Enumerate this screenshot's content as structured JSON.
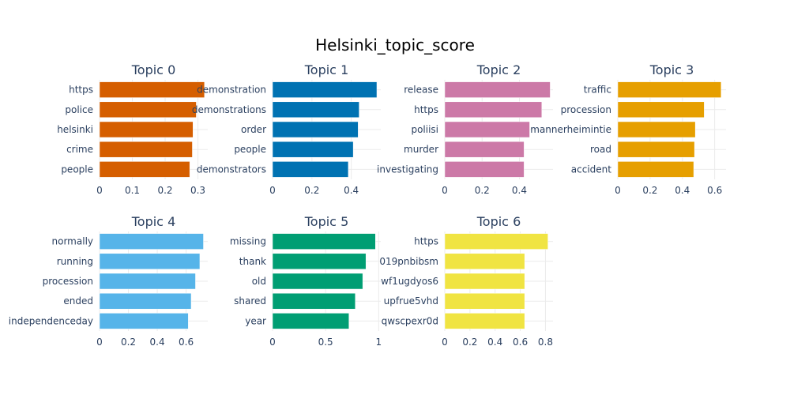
{
  "chart_data": {
    "type": "bar",
    "orientation": "horizontal",
    "title": "Helsinki_topic_score",
    "grid": true,
    "subplots": [
      {
        "title": "Topic 0",
        "color": "#D55E00",
        "categories": [
          "https",
          "police",
          "helsinki",
          "crime",
          "people"
        ],
        "values": [
          0.32,
          0.295,
          0.285,
          0.283,
          0.275
        ],
        "xlim": [
          0,
          0.33
        ],
        "xticks": [
          "0",
          "0.1",
          "0.2",
          "0.3"
        ],
        "xtick_values": [
          0,
          0.1,
          0.2,
          0.3
        ]
      },
      {
        "title": "Topic 1",
        "color": "#0072B2",
        "categories": [
          "demonstration",
          "demonstrations",
          "order",
          "people",
          "demonstrators"
        ],
        "values": [
          0.53,
          0.44,
          0.435,
          0.41,
          0.385
        ],
        "xlim": [
          0,
          0.55
        ],
        "xticks": [
          "0",
          "0.2",
          "0.4"
        ],
        "xtick_values": [
          0,
          0.2,
          0.4
        ]
      },
      {
        "title": "Topic 2",
        "color": "#CC79A7",
        "categories": [
          "release",
          "https",
          "poliisi",
          "murder",
          "investigating"
        ],
        "values": [
          0.565,
          0.52,
          0.455,
          0.425,
          0.425
        ],
        "xlim": [
          0,
          0.58
        ],
        "xticks": [
          "0",
          "0.2",
          "0.4"
        ],
        "xtick_values": [
          0,
          0.2,
          0.4
        ]
      },
      {
        "title": "Topic 3",
        "color": "#E69F00",
        "categories": [
          "traffic",
          "procession",
          "mannerheimintie",
          "road",
          "accident"
        ],
        "values": [
          0.64,
          0.535,
          0.48,
          0.475,
          0.47
        ],
        "xlim": [
          0,
          0.67
        ],
        "xticks": [
          "0",
          "0.2",
          "0.4",
          "0.6"
        ],
        "xtick_values": [
          0,
          0.2,
          0.4,
          0.6
        ]
      },
      {
        "title": "Topic 4",
        "color": "#56B4E9",
        "categories": [
          "normally",
          "running",
          "procession",
          "ended",
          "independenceday"
        ],
        "values": [
          0.72,
          0.695,
          0.665,
          0.635,
          0.615
        ],
        "xlim": [
          0,
          0.75
        ],
        "xticks": [
          "0",
          "0.2",
          "0.4",
          "0.6"
        ],
        "xtick_values": [
          0,
          0.2,
          0.4,
          0.6
        ]
      },
      {
        "title": "Topic 5",
        "color": "#009E73",
        "categories": [
          "missing",
          "thank",
          "old",
          "shared",
          "year"
        ],
        "values": [
          0.97,
          0.88,
          0.85,
          0.78,
          0.72
        ],
        "xlim": [
          0,
          1.02
        ],
        "xticks": [
          "0",
          "0.5",
          "1"
        ],
        "xtick_values": [
          0,
          0.5,
          1
        ]
      },
      {
        "title": "Topic 6",
        "color": "#F0E442",
        "categories": [
          "https",
          "019pnbibsm",
          "wf1ugdyos6",
          "upfrue5vhd",
          "qwscpexr0d"
        ],
        "values": [
          0.82,
          0.635,
          0.635,
          0.635,
          0.635
        ],
        "xlim": [
          0,
          0.86
        ],
        "xticks": [
          "0",
          "0.2",
          "0.4",
          "0.6",
          "0.8"
        ],
        "xtick_values": [
          0,
          0.2,
          0.4,
          0.6,
          0.8
        ]
      }
    ]
  }
}
